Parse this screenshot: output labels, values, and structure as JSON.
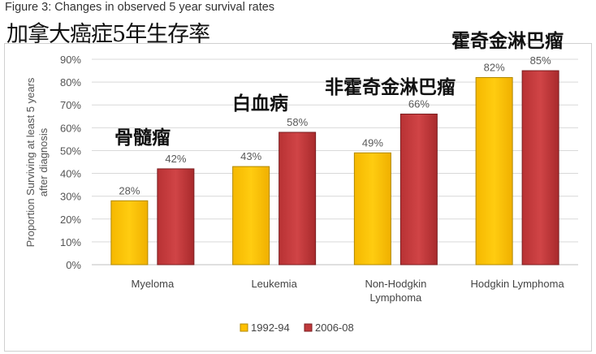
{
  "figure_caption": "Figure 3: Changes in observed 5 year survival rates",
  "overlay_title": "加拿大癌症5年生存率",
  "annotations": [
    "骨髓瘤",
    "白血病",
    "非霍奇金淋巴瘤",
    "霍奇金淋巴瘤"
  ],
  "chart_data": {
    "type": "bar",
    "title": "",
    "xlabel": "",
    "ylabel": "Proportion Surviving at least 5 years after diagnosis",
    "ylim": [
      0,
      90
    ],
    "yticks": [
      "0%",
      "10%",
      "20%",
      "30%",
      "40%",
      "50%",
      "60%",
      "70%",
      "80%",
      "90%"
    ],
    "categories": [
      [
        "Myeloma"
      ],
      [
        "Leukemia"
      ],
      [
        "Non-Hodgkin",
        "Lymphoma"
      ],
      [
        "Hodgkin Lymphoma"
      ]
    ],
    "series": [
      {
        "name": "1992-94",
        "values": [
          28,
          43,
          49,
          82
        ],
        "labels": [
          "28%",
          "43%",
          "49%",
          "82%"
        ],
        "color": "#FFC000"
      },
      {
        "name": "2006-08",
        "values": [
          42,
          58,
          66,
          85
        ],
        "labels": [
          "42%",
          "58%",
          "66%",
          "85%"
        ],
        "color": "#C0393B"
      }
    ],
    "grid": true,
    "legend": "bottom"
  }
}
